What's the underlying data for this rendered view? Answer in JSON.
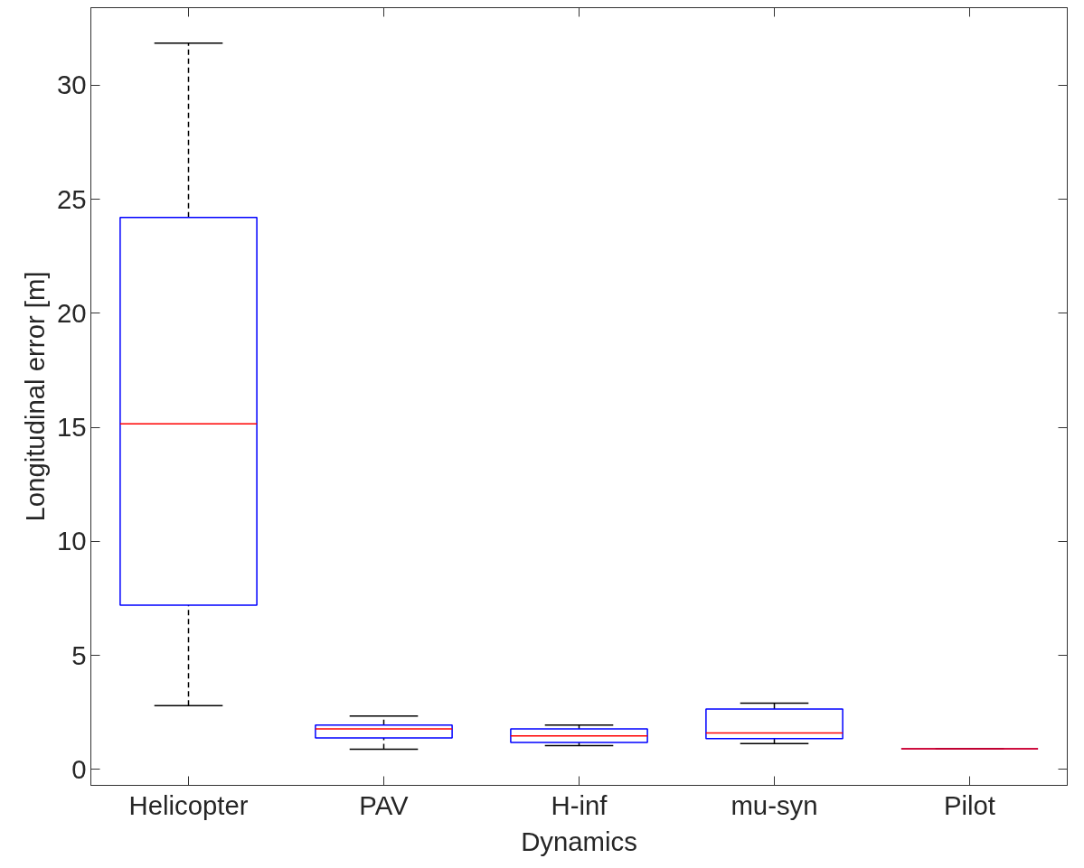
{
  "chart_data": {
    "type": "box",
    "xlabel": "Dynamics",
    "ylabel": "Longitudinal error [m]",
    "categories": [
      "Helicopter",
      "PAV",
      "H-inf",
      "mu-syn",
      "Pilot"
    ],
    "boxes": [
      {
        "low": 2.8,
        "q1": 7.2,
        "median": 15.15,
        "q3": 24.2,
        "high": 31.85
      },
      {
        "low": 0.88,
        "q1": 1.38,
        "median": 1.78,
        "q3": 1.94,
        "high": 2.34
      },
      {
        "low": 1.04,
        "q1": 1.18,
        "median": 1.47,
        "q3": 1.78,
        "high": 1.94
      },
      {
        "low": 1.13,
        "q1": 1.35,
        "median": 1.6,
        "q3": 2.65,
        "high": 2.9
      },
      {
        "low": 0.9,
        "q1": 0.9,
        "median": 0.9,
        "q3": 0.9,
        "high": 0.9
      }
    ],
    "color": "#0000ff",
    "ylim": [
      -0.7,
      33.4
    ],
    "yticks": [
      0,
      5,
      10,
      15,
      20,
      25,
      30
    ],
    "grid": false
  }
}
